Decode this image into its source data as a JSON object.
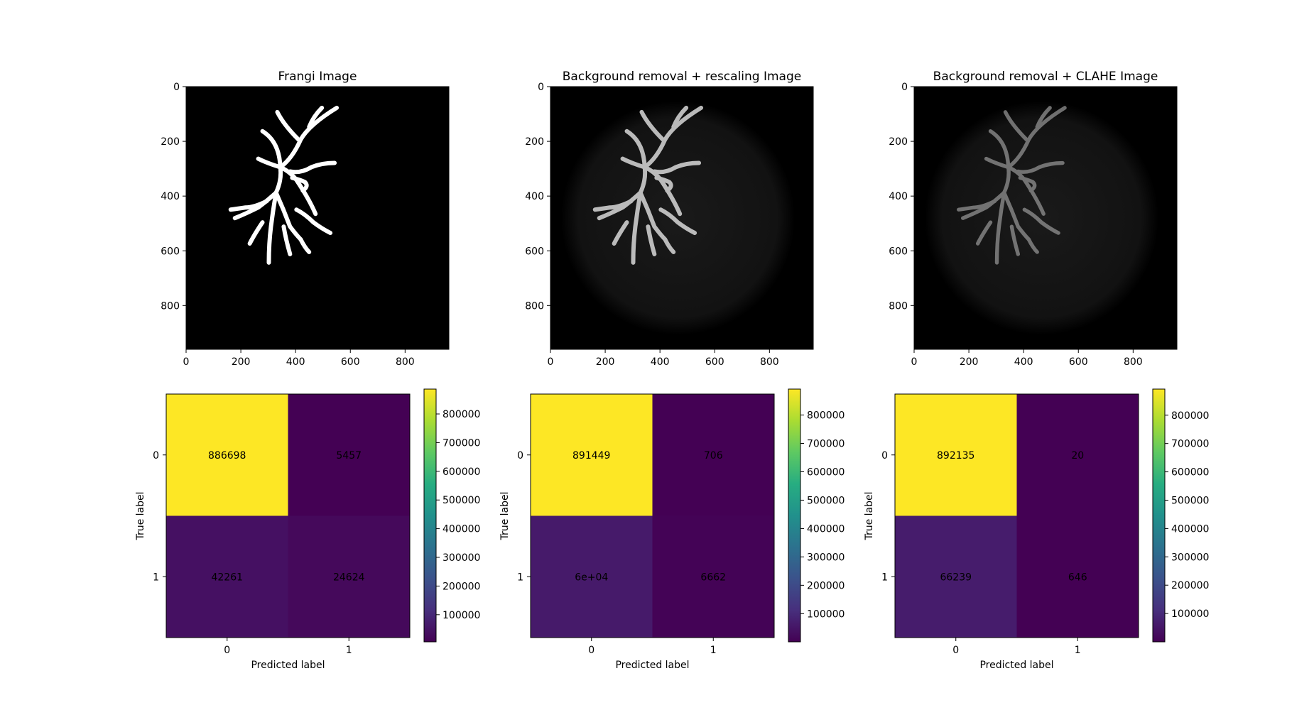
{
  "chart_data": [
    {
      "type": "image",
      "title": "Frangi Image",
      "image_size": [
        960,
        960
      ],
      "xlim": [
        0,
        960
      ],
      "ylim": [
        960,
        0
      ],
      "xticks": [
        0,
        200,
        400,
        600,
        800
      ],
      "yticks": [
        0,
        200,
        400,
        600,
        800
      ],
      "colormap": "gray"
    },
    {
      "type": "image",
      "title": "Background removal + rescaling Image",
      "image_size": [
        960,
        960
      ],
      "xlim": [
        0,
        960
      ],
      "ylim": [
        960,
        0
      ],
      "xticks": [
        0,
        200,
        400,
        600,
        800
      ],
      "yticks": [
        0,
        200,
        400,
        600,
        800
      ],
      "colormap": "gray"
    },
    {
      "type": "image",
      "title": "Background removal + CLAHE Image",
      "image_size": [
        960,
        960
      ],
      "xlim": [
        0,
        960
      ],
      "ylim": [
        960,
        0
      ],
      "xticks": [
        0,
        200,
        400,
        600,
        800
      ],
      "yticks": [
        0,
        200,
        400,
        600,
        800
      ],
      "colormap": "gray"
    },
    {
      "type": "heatmap",
      "xlabel": "Predicted label",
      "ylabel": "True label",
      "x_categories": [
        "0",
        "1"
      ],
      "y_categories": [
        "0",
        "1"
      ],
      "values": [
        [
          886698,
          5457
        ],
        [
          42261,
          24624
        ]
      ],
      "cell_labels": [
        [
          "886698",
          "5457"
        ],
        [
          "42261",
          "24624"
        ]
      ],
      "colormap": "viridis",
      "color_range": [
        5457,
        886698
      ],
      "colorbar_ticks": [
        100000,
        200000,
        300000,
        400000,
        500000,
        600000,
        700000,
        800000
      ]
    },
    {
      "type": "heatmap",
      "xlabel": "Predicted label",
      "ylabel": "True label",
      "x_categories": [
        "0",
        "1"
      ],
      "y_categories": [
        "0",
        "1"
      ],
      "values": [
        [
          891449,
          706
        ],
        [
          60223,
          6662
        ]
      ],
      "cell_labels": [
        [
          "891449",
          "706"
        ],
        [
          "6e+04",
          "6662"
        ]
      ],
      "colormap": "viridis",
      "color_range": [
        706,
        891449
      ],
      "colorbar_ticks": [
        100000,
        200000,
        300000,
        400000,
        500000,
        600000,
        700000,
        800000
      ]
    },
    {
      "type": "heatmap",
      "xlabel": "Predicted label",
      "ylabel": "True label",
      "x_categories": [
        "0",
        "1"
      ],
      "y_categories": [
        "0",
        "1"
      ],
      "values": [
        [
          892135,
          20
        ],
        [
          66239,
          646
        ]
      ],
      "cell_labels": [
        [
          "892135",
          "20"
        ],
        [
          "66239",
          "646"
        ]
      ],
      "colormap": "viridis",
      "color_range": [
        20,
        892135
      ],
      "colorbar_ticks": [
        100000,
        200000,
        300000,
        400000,
        500000,
        600000,
        700000,
        800000
      ]
    }
  ],
  "colors": {
    "viridis_high": "#fde725",
    "viridis_low": "#440154",
    "text_on_dark": "#fde725",
    "text_on_light": "#440154"
  }
}
